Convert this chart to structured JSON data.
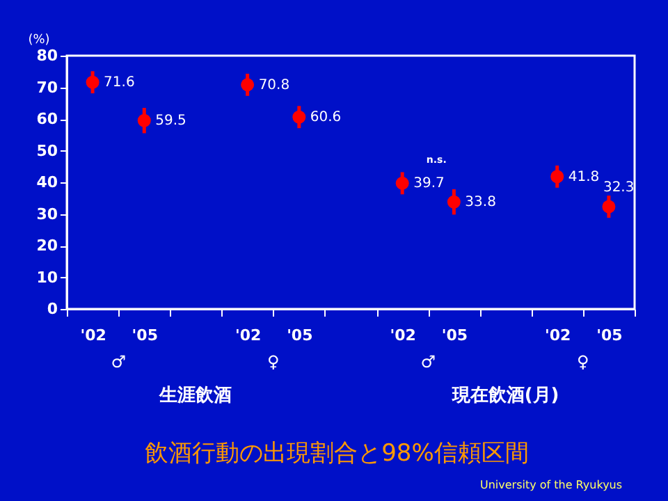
{
  "chart_data": {
    "type": "scatter",
    "title": "飲酒行動の出現割合と98%信頼区間",
    "ylabel": "(%)",
    "categories": [
      "'02",
      "'05",
      null,
      "'02",
      "'05",
      null,
      "'02",
      "'05",
      null,
      "'02",
      "'05"
    ],
    "series": [
      {
        "color": "#ff0000",
        "values": [
          71.6,
          59.5,
          null,
          70.8,
          60.6,
          null,
          39.7,
          33.8,
          null,
          41.8,
          32.3
        ],
        "errors": [
          3.5,
          4,
          null,
          3.5,
          3.5,
          null,
          3.5,
          4,
          null,
          3.5,
          3.5
        ]
      }
    ],
    "data_labels": true,
    "marker": "circle",
    "ylim": [
      0,
      80
    ],
    "yticks": [
      0,
      10,
      20,
      30,
      40,
      50,
      60,
      70,
      80
    ],
    "grid": false,
    "annotations": [
      "♂",
      "♀",
      "♂",
      "♀",
      "生涯飲酒",
      "現在飲酒(月)",
      "n.s.",
      "University of the Ryukyus"
    ]
  }
}
